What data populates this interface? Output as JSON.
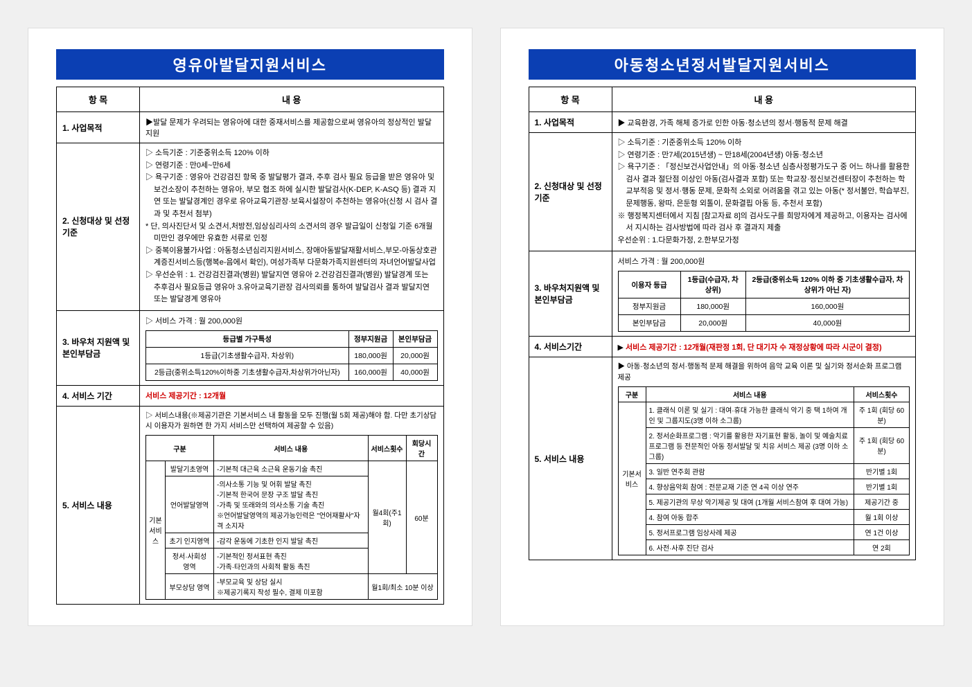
{
  "left": {
    "title": "영유아발달지원서비스",
    "header_item": "항    목",
    "header_content": "내        용",
    "purpose_label": "1. 사업목적",
    "purpose": "▶발달 문제가 우려되는 영유아에 대한 중재서비스를 제공함으로써 영유아의 정상적인 발달 지원",
    "target_label": "2. 신청대상 및 선정기준",
    "target_lines": [
      "▷ 소득기준 : 기준중위소득 120% 이하",
      "▷ 연령기준 : 만0세~만6세",
      "▷ 욕구기준 : 영유아 건강검진 항목 중 발달평가 결과, 추후 검사 필요 등급을 받은 영유아 및 보건소장이 추천하는 영유아, 부모 협조 하에 실시한 발달검사(K-DEP, K-ASQ 등) 결과 지연 또는 발달경계인 경우로 유아교육기관장·보육시설장이 추천하는 영유아(신청 시 검사 결과 및 추천서 첨부)",
      "* 단, 의사진단서 및 소견서,처방전,임상심리사의 소견서의 경우 발급일이 신청일 기준 6개월 미만인 경우에만 유효한 서류로 인정",
      "▷ 중복이용불가사업 : 아동청소년심리지원서비스, 장애아동발달재활서비스,부모-아동상호관계증진서비스등(행복e-음에서 확인), 여성가족부 다문화가족지원센터의 자녀언어발달사업",
      "▷ 우선순위 : 1. 건강검진결과(병원) 발달지연 영유아 2.건강검진결과(병원) 발달경계 또는 추후검사 필요등급 영유아 3.유아교육기관장 검사의뢰를 통하여 발달검사 결과 발달지연 또는 발달경계 영유아"
    ],
    "voucher_label": "3. 바우처 지원액 및 본인부담금",
    "price": "▷  서비스 가격 : 월 200,000원",
    "voucher_table": {
      "headers": [
        "등급별 가구특성",
        "정부지원금",
        "본인부담금"
      ],
      "rows": [
        [
          "1등급(기초생활수급자, 차상위)",
          "180,000원",
          "20,000원"
        ],
        [
          "2등급(중위소득120%이하중 기초생활수급자,차상위가아닌자)",
          "160,000원",
          "40,000원"
        ]
      ]
    },
    "period_label": "4. 서비스 기간",
    "period": "서비스 제공기간 : 12개월",
    "svc_label": "5. 서비스 내용",
    "svc_note": "▷  서비스내용(※제공기관은 기본서비스 내 활동을 모두 진행(월 5회 제공)해야 함. 다만 초기상담 시 이용자가 원하면 한 가지 서비스만 선택하여 제공할 수 있음)",
    "svc_table": {
      "basic": "기본서비스",
      "h_area": "구분",
      "h_content": "서비스 내용",
      "h_freq": "서비스횟수",
      "h_time": "회당시간",
      "freq1": "월4회(주1회)",
      "time1": "60분",
      "freq2": "월1회/최소 10분 이상",
      "rows": [
        {
          "area": "발달기초영역",
          "content": "-기본적 대근육 소근육 운동기술 촉진"
        },
        {
          "area": "언어발달영역",
          "content": "-의사소통 기능 및 어휘 발달 촉진\n-기본적 한국어 문장 구조 발달 촉진\n-가족 및 또래와의 의사소통 기술 촉진\n※언어발달영역의 제공가능인력은 \"언어재활사\"자격 소지자"
        },
        {
          "area": "초기 인지영역",
          "content": "-감각 운동에 기초한 인지 발달 촉진"
        },
        {
          "area": "정서·사회성 영역",
          "content": "-기본적인 정서표현 촉진\n-가족·타인과의 사회적 활동 촉진"
        },
        {
          "area": "부모상담 영역",
          "content": "-부모교육 및 상담 실시\n※제공기록지 작성 필수, 결제 미포함"
        }
      ]
    }
  },
  "right": {
    "title": "아동청소년정서발달지원서비스",
    "header_item": "항    목",
    "header_content": "내        용",
    "purpose_label": "1. 사업목적",
    "purpose": "▶  교육환경, 가족 해체 증가로 인한 아동·청소년의 정서·행동적 문제 해결",
    "target_label": "2. 신청대상 및 선정기준",
    "target_lines": [
      "▷ 소득기준 : 기준중위소득 120% 이하",
      "▷ 연령기준 : 만7세(2015년생) ~ 만18세(2004년생) 아동·청소년",
      "▷ 욕구기준 : 「정신보건사업안내」의 아동·청소년 심층사정평가도구 중 어느 하나를 활용한 검사 결과 절단점 이상인 아동(검사결과 포함) 또는 학교장·정신보건센터장이 추천하는 학교부적응 및 정서·행동 문제, 문화적 소외로 어려움을 겪고 있는 아동(* 정서불안, 학습부진, 문제행동, 왕따, 은둔형 외톨이, 문화결핍 아동 등, 추천서 포함)",
      "※ 행정복지센터에서 지침 [참고자료 8]의 검사도구를 희망자에게 제공하고, 이용자는 검사에서 지시하는 검사방법에 따라 검사 후 결과지 제출",
      "우선순위 : 1.다문화가정,  2.한부모가정"
    ],
    "voucher_label": "3. 바우처지원액 및 본인부담금",
    "price": "서비스 가격 : 월 200,000원",
    "voucher_table": {
      "headers": [
        "이용자 등급",
        "1등급(수급자, 차상위)",
        "2등급(중위소득 120% 이하 중 기초생활수급자, 차상위가 아닌 자)"
      ],
      "r1": [
        "정부지원금",
        "180,000원",
        "160,000원"
      ],
      "r2": [
        "본인부담금",
        "20,000원",
        "40,000원"
      ]
    },
    "period_label": "4. 서비스기간",
    "period_prefix": "▶  ",
    "period": "서비스 제공기간 : 12개월(재판정 1회, 단 대기자 수 재정상황에 따라 시군이 결정)",
    "svc_label": "5. 서비스 내용",
    "svc_note": "▶  아동·청소년의 정서·행동적 문제 해결을 위하여 음악 교육 이론 및 실기와 정서순화 프로그램 제공",
    "svc_table": {
      "basic": "기본서비스",
      "h_gubun": "구분",
      "h_content": "서비스 내용",
      "h_freq": "서비스횟수",
      "rows": [
        {
          "content": "1. 클래식 이론 및 실기 : 대여·휴대 가능한 클래식 악기 중 택 1하여 개인 및 그룹지도(3명 이하 소그룹)",
          "freq": "주 1회 (회당 60분)"
        },
        {
          "content": "2. 정서순화프로그램 : 악기를 활용한 자기표현 활동, 놀이 및 예술치료 프로그램 등 전문적인 아동 정서발달 및 치유 서비스 제공 (3명 이하 소그룹)",
          "freq": "주 1회 (회당 60분)"
        },
        {
          "content": "3. 일반 연주회 관람",
          "freq": "반기별 1회"
        },
        {
          "content": "4. 향상음악회 참여 : 전문교재 기준 연 4곡 이상 연주",
          "freq": "반기별 1회"
        },
        {
          "content": "5. 제공기관의 무상 악기제공 및 대여 (1개월 서비스참여 후 대여 가능)",
          "freq": "제공기간 중"
        },
        {
          "content": "4. 참여 아동 합주",
          "freq": "월 1회 이상"
        },
        {
          "content": "5. 정서프로그램 임상사례 제공",
          "freq": "연 1건 이상"
        },
        {
          "content": "6. 사전·사후 진단 검사",
          "freq": "연 2회"
        }
      ]
    }
  }
}
